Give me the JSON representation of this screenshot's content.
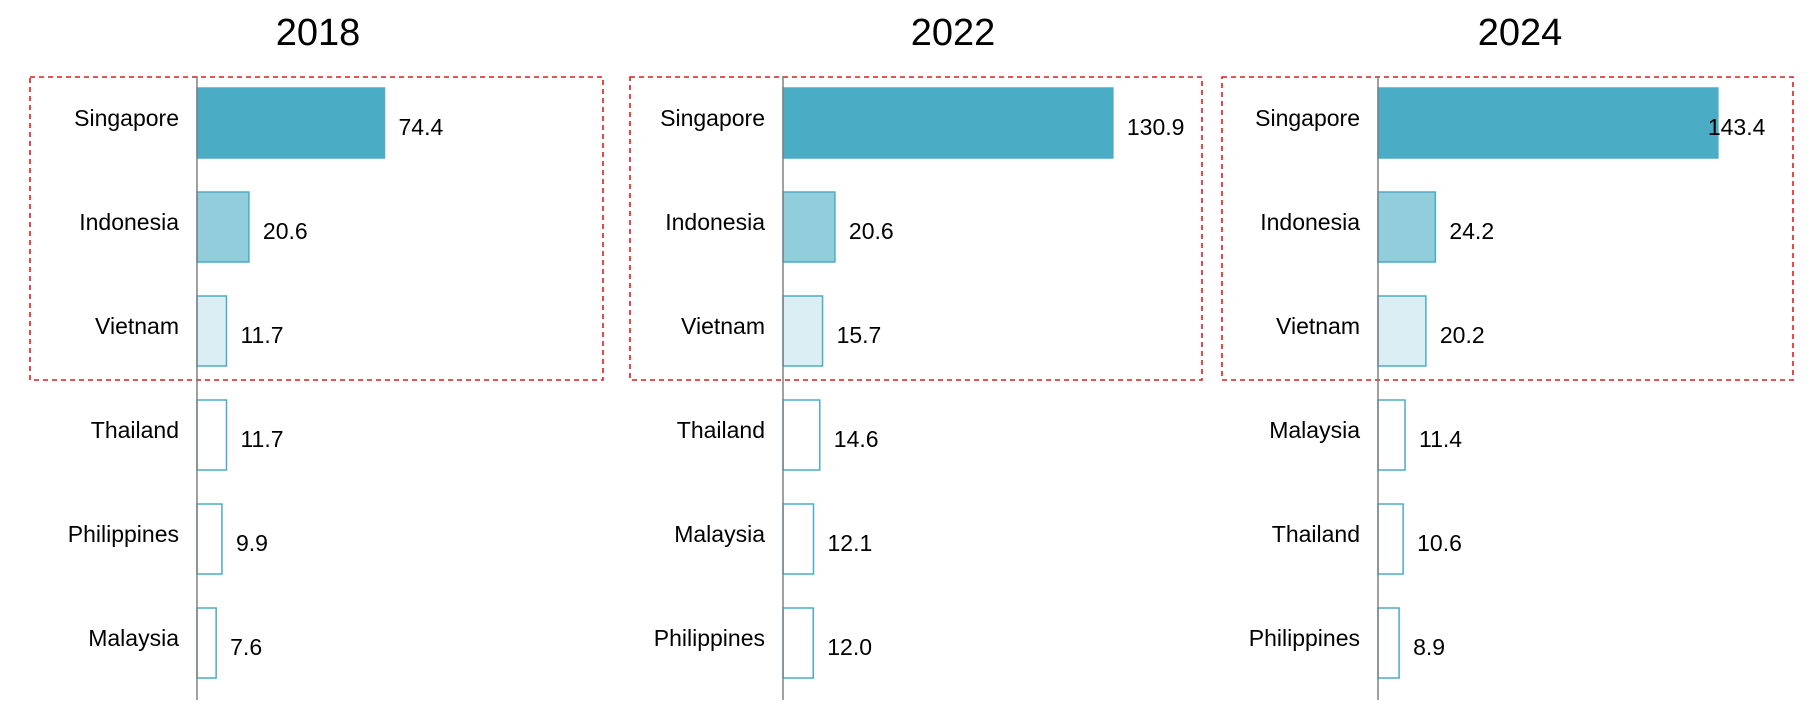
{
  "colors": {
    "dark": "#4bacc6",
    "medium": "#92cddc",
    "light": "#daeef3",
    "outline": "#4bacc6",
    "axis": "#808080",
    "highlight_box": "#e41a1c"
  },
  "chart_data": [
    {
      "type": "bar",
      "orientation": "horizontal",
      "title": "2018",
      "categories": [
        "Singapore",
        "Indonesia",
        "Vietnam",
        "Thailand",
        "Philippines",
        "Malaysia"
      ],
      "values": [
        74.4,
        20.6,
        11.7,
        11.7,
        9.9,
        7.6
      ],
      "value_labels": [
        "74.4",
        "20.6",
        "11.7",
        "11.7",
        "9.9",
        "7.6"
      ],
      "fills": [
        "dark",
        "medium",
        "light",
        "none",
        "none",
        "none"
      ],
      "highlight_top_n": 3
    },
    {
      "type": "bar",
      "orientation": "horizontal",
      "title": "2022",
      "categories": [
        "Singapore",
        "Indonesia",
        "Vietnam",
        "Thailand",
        "Malaysia",
        "Philippines"
      ],
      "values": [
        130.9,
        20.6,
        15.7,
        14.6,
        12.1,
        12.0
      ],
      "value_labels": [
        "130.9",
        "20.6",
        "15.7",
        "14.6",
        "12.1",
        "12.0"
      ],
      "fills": [
        "dark",
        "medium",
        "light",
        "none",
        "none",
        "none"
      ],
      "highlight_top_n": 3
    },
    {
      "type": "bar",
      "orientation": "horizontal",
      "title": "2024",
      "categories": [
        "Singapore",
        "Indonesia",
        "Vietnam",
        "Malaysia",
        "Thailand",
        "Philippines"
      ],
      "values": [
        143.4,
        24.2,
        20.2,
        11.4,
        10.6,
        8.9
      ],
      "value_labels": [
        "143.4",
        "24.2",
        "20.2",
        "11.4",
        "10.6",
        "8.9"
      ],
      "fills": [
        "dark",
        "medium",
        "light",
        "none",
        "none",
        "none"
      ],
      "highlight_top_n": 3
    }
  ]
}
